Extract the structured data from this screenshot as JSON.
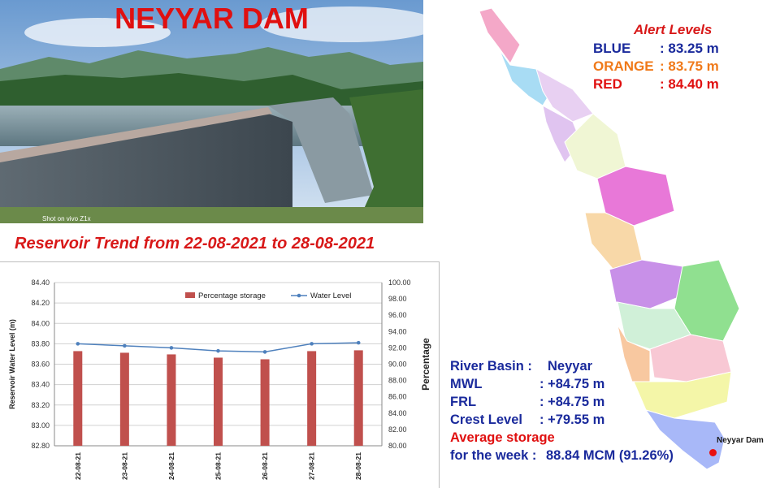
{
  "photo": {
    "title": "NEYYAR DAM",
    "watermark": "Shot on vivo Z1x"
  },
  "trend_title": "Reservoir Trend from 22-08-2021 to 28-08-2021",
  "alert_levels": {
    "title": "Alert Levels",
    "items": [
      {
        "name": "BLUE",
        "value": ": 83.25 m",
        "color": "#1a2a9c"
      },
      {
        "name": "ORANGE",
        "value": ": 83.75 m",
        "color": "#f07a1a"
      },
      {
        "name": "RED",
        "value": ": 84.40 m",
        "color": "#e01010"
      }
    ]
  },
  "info": {
    "river_basin_label": "River Basin :",
    "river_basin_value": "Neyyar",
    "mwl_label": "MWL",
    "mwl_value": ": +84.75 m",
    "frl_label": "FRL",
    "frl_value": ": +84.75 m",
    "crest_label": "Crest Level",
    "crest_value": ": +79.55 m",
    "avg_label": "Average storage",
    "avg_week_label": "for the week :",
    "avg_week_value": "88.84 MCM (91.26%)"
  },
  "map": {
    "dam_label": "Neyyar Dam"
  },
  "chart_data": {
    "type": "bar",
    "categories": [
      "22-08-21",
      "23-08-21",
      "24-08-21",
      "25-08-21",
      "26-08-21",
      "27-08-21",
      "28-08-21"
    ],
    "series": [
      {
        "name": "Percentage storage",
        "type": "bar",
        "axis": "right",
        "color": "#c0504d",
        "values": [
          91.6,
          91.4,
          91.2,
          90.8,
          90.6,
          91.6,
          91.7
        ]
      },
      {
        "name": "Water Level",
        "type": "line",
        "axis": "left",
        "color": "#4f81bd",
        "values": [
          83.8,
          83.78,
          83.76,
          83.73,
          83.72,
          83.8,
          83.81
        ]
      }
    ],
    "ylabel": "Reservoir Water Level (m)",
    "ylabel_right": "Percentage",
    "ylim": [
      82.8,
      84.4
    ],
    "ylim_right": [
      80,
      100
    ],
    "yticks": [
      "82.80",
      "83.00",
      "83.20",
      "83.40",
      "83.60",
      "83.80",
      "84.00",
      "84.20",
      "84.40"
    ],
    "yticks_right": [
      "80.00",
      "82.00",
      "84.00",
      "86.00",
      "88.00",
      "90.00",
      "92.00",
      "94.00",
      "96.00",
      "98.00",
      "100.00"
    ],
    "legend": "top-right",
    "grid": true
  }
}
